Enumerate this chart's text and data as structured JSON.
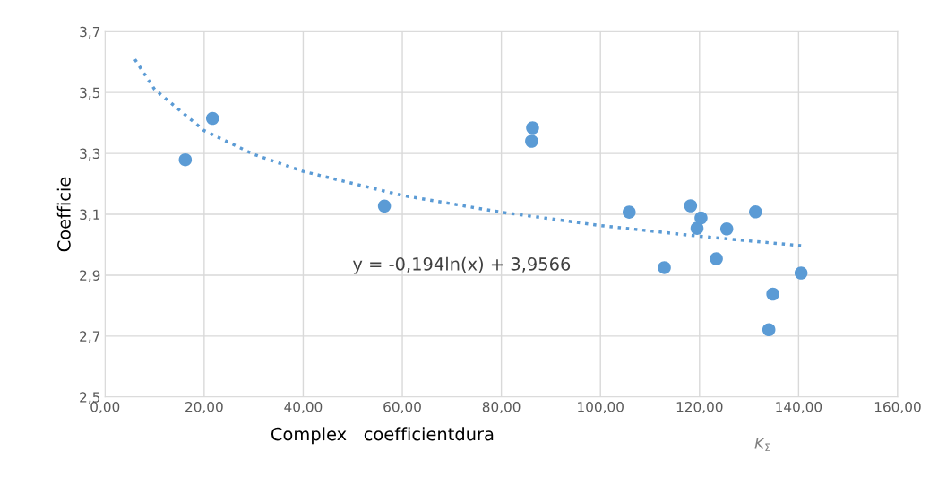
{
  "chart_data": {
    "type": "scatter",
    "xlabel": "Complex   coefficientdura",
    "ylabel": "Coefficie",
    "series": [
      {
        "color": "#5b9bd5",
        "marker": "circle",
        "x": [
          16.2,
          21.7,
          56.4,
          86.3,
          86.1,
          105.8,
          112.9,
          118.2,
          119.5,
          120.3,
          123.4,
          125.5,
          131.3,
          134.0,
          134.8,
          140.5
        ],
        "values": [
          3.279,
          3.415,
          3.127,
          3.384,
          3.34,
          3.107,
          2.925,
          3.128,
          3.054,
          3.088,
          2.954,
          3.052,
          3.108,
          2.721,
          2.838,
          2.907
        ]
      },
      {
        "type": "line",
        "color": "#5b9bd5",
        "line_style": "dotted",
        "marker": "none",
        "x": [
          6,
          10,
          20,
          30,
          40,
          60,
          80,
          100,
          120,
          140.5
        ],
        "values": [
          3.609,
          3.51,
          3.375,
          3.297,
          3.241,
          3.162,
          3.107,
          3.063,
          3.028,
          2.997
        ]
      }
    ],
    "annotations": [
      "y = -0,194ln(x) + 3,9566",
      "K$_{Σ}$"
    ],
    "xlim": [
      0,
      160
    ],
    "ylim": [
      2.5,
      3.7
    ],
    "xticks": [
      {
        "value": 0,
        "label": "0,00"
      },
      {
        "value": 20,
        "label": "20,00"
      },
      {
        "value": 40,
        "label": "40,00"
      },
      {
        "value": 60,
        "label": "60,00"
      },
      {
        "value": 80,
        "label": "80,00"
      },
      {
        "value": 100,
        "label": "100,00"
      },
      {
        "value": 120,
        "label": "120,00"
      },
      {
        "value": 140,
        "label": "140,00"
      },
      {
        "value": 160,
        "label": "160,00"
      }
    ],
    "yticks": [
      {
        "value": 2.5,
        "label": "2,5"
      },
      {
        "value": 2.7,
        "label": "2,7"
      },
      {
        "value": 2.9,
        "label": "2,9"
      },
      {
        "value": 3.1,
        "label": "3,1"
      },
      {
        "value": 3.3,
        "label": "3,3"
      },
      {
        "value": 3.5,
        "label": "3,5"
      },
      {
        "value": 3.7,
        "label": "3,7"
      }
    ],
    "grid": true,
    "legend": false
  }
}
